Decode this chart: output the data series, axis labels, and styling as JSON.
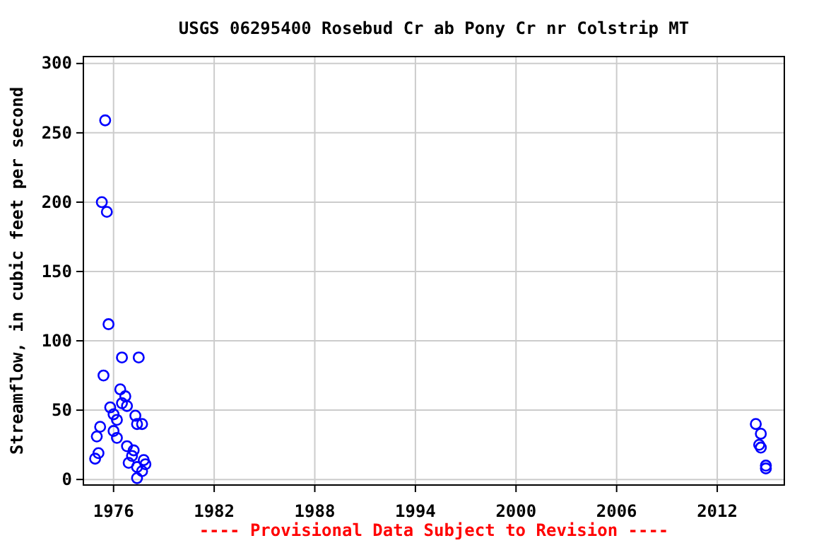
{
  "chart_data": {
    "type": "scatter",
    "title": "USGS 06295400 Rosebud Cr ab Pony Cr nr Colstrip MT",
    "ylabel": "Streamflow, in cubic feet per second",
    "annotations": [
      "---- Provisional Data Subject to Revision ----"
    ],
    "x": [
      1975.5,
      1975.3,
      1975.6,
      1975.7,
      1975.4,
      1976.5,
      1977.5,
      1975.0,
      1975.2,
      1975.1,
      1974.9,
      1975.8,
      1976.0,
      1976.2,
      1976.4,
      1976.7,
      1976.5,
      1976.8,
      1976.0,
      1976.2,
      1977.3,
      1977.4,
      1977.7,
      1976.8,
      1977.2,
      1976.9,
      1977.1,
      1977.4,
      1977.8,
      1977.9,
      1977.7,
      1977.4,
      2014.3,
      2014.6,
      2014.5,
      2014.6,
      2014.9,
      2014.9
    ],
    "series": [
      {
        "color": "#0000ff",
        "values": [
          259,
          200,
          193,
          112,
          75,
          88,
          88,
          31,
          38,
          19,
          15,
          52,
          47,
          43,
          65,
          60,
          55,
          53,
          35,
          30,
          46,
          40,
          40,
          24,
          21,
          12,
          17,
          9,
          14,
          11,
          6,
          1,
          40,
          33,
          25,
          23,
          10,
          8
        ]
      }
    ],
    "xlim": [
      1974.2,
      2016.0
    ],
    "xticks": [
      1976,
      1982,
      1988,
      1994,
      2000,
      2006,
      2012
    ],
    "ylim": [
      -4,
      305
    ],
    "yticks": [
      0,
      50,
      100,
      150,
      200,
      250,
      300
    ],
    "grid": true,
    "marker": "circle"
  }
}
